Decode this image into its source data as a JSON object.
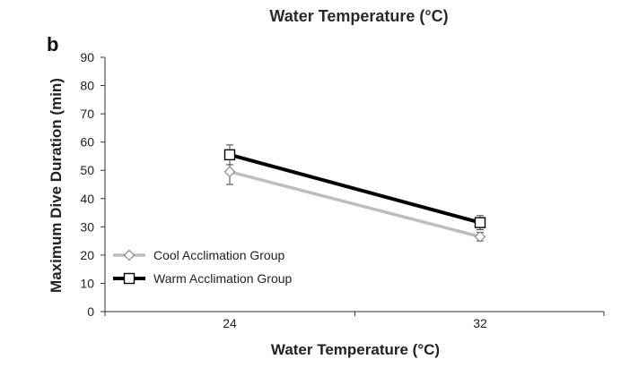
{
  "chart_data": {
    "type": "line",
    "panel_label": "b",
    "top_label": "Water Temperature (°C)",
    "xlabel": "Water Temperature (°C)",
    "ylabel": "Maximum Dive Duration (min)",
    "categories": [
      "24",
      "32"
    ],
    "ylim": [
      0,
      90
    ],
    "yticks": [
      "0",
      "10",
      "20",
      "30",
      "40",
      "50",
      "60",
      "70",
      "80",
      "90"
    ],
    "grid": false,
    "legend_position": "bottom-left",
    "series": [
      {
        "name": "Cool Acclimation Group",
        "values": [
          49.5,
          26.5
        ],
        "errors": [
          4.5,
          1.5
        ],
        "color": "#bdbdbd",
        "marker": "diamond"
      },
      {
        "name": "Warm Acclimation Group",
        "values": [
          55.5,
          31.5
        ],
        "errors": [
          3.5,
          2.5
        ],
        "color": "#000000",
        "marker": "square"
      }
    ]
  }
}
